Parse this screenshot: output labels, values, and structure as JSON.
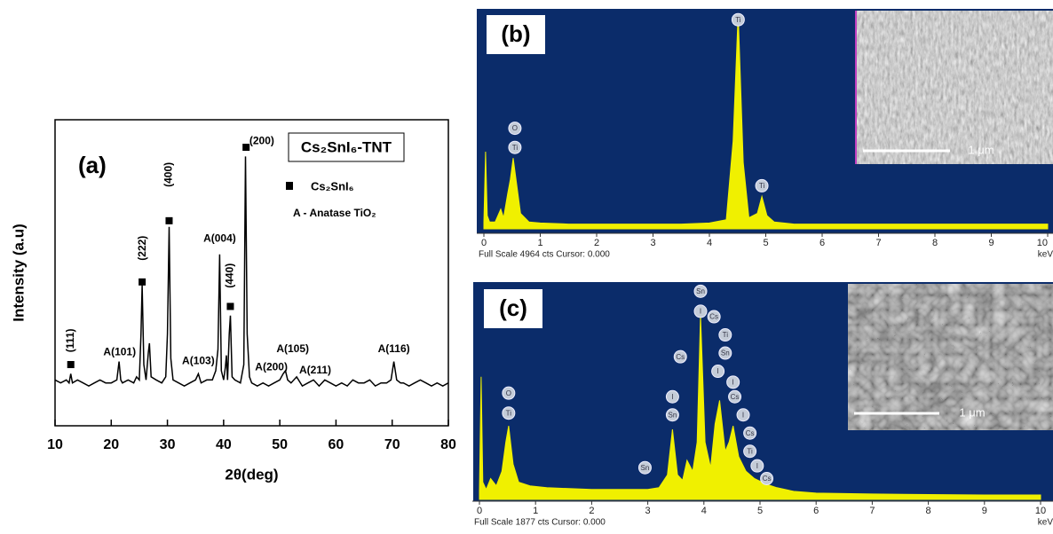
{
  "chart_data": [
    {
      "type": "line",
      "panel_label": "(a)",
      "title": "Cs₂SnI₆-TNT",
      "xlabel": "2θ(deg)",
      "ylabel": "Intensity (a.u)",
      "xlim": [
        10,
        80
      ],
      "ylim": [
        0,
        100
      ],
      "xticks": [
        10,
        20,
        30,
        40,
        50,
        60,
        70,
        80
      ],
      "color": "#000000",
      "x": [
        10,
        11,
        12,
        12.5,
        12.8,
        13.1,
        14,
        15,
        16,
        17,
        18,
        19,
        20,
        21,
        21.4,
        21.7,
        22,
        23,
        24,
        24.5,
        25,
        25.3,
        25.5,
        25.8,
        26.2,
        26.6,
        26.8,
        27.1,
        28,
        29,
        29.7,
        30.0,
        30.3,
        30.6,
        31,
        32,
        33,
        34,
        35,
        35.5,
        36,
        37,
        38,
        38.6,
        39.0,
        39.3,
        39.6,
        40,
        40.3,
        40.5,
        40.7,
        41.0,
        41.2,
        41.5,
        42,
        43,
        43.6,
        43.9,
        44.2,
        44.6,
        45,
        46,
        47,
        48,
        49,
        50,
        50.6,
        51,
        51.4,
        52,
        53,
        54,
        55,
        56,
        57,
        58,
        59,
        60,
        61,
        62,
        63,
        64,
        65,
        66,
        67,
        68,
        69,
        69.8,
        70.3,
        70.8,
        71.5,
        72,
        73,
        74,
        75,
        76,
        77,
        78,
        79,
        80
      ],
      "y": [
        15,
        14,
        15,
        14,
        17,
        14,
        15,
        14,
        13,
        14,
        15,
        14,
        14,
        15,
        21,
        15,
        14,
        15,
        14,
        16,
        15,
        30,
        46,
        20,
        15,
        24,
        27,
        16,
        15,
        14,
        16,
        30,
        65,
        22,
        15,
        14,
        13,
        14,
        15,
        17,
        14,
        15,
        15,
        18,
        25,
        56,
        18,
        15,
        19,
        23,
        15,
        30,
        36,
        16,
        15,
        14,
        20,
        88,
        30,
        16,
        14,
        13,
        14,
        13,
        14,
        15,
        17,
        18,
        15,
        14,
        16,
        13,
        14,
        15,
        13,
        15,
        14,
        13,
        14,
        13,
        15,
        14,
        14,
        15,
        13,
        14,
        14,
        15,
        21,
        15,
        14,
        14,
        13,
        14,
        15,
        14,
        13,
        14,
        13,
        14
      ],
      "markers": {
        "name": "Cs₂SnI₆",
        "x": [
          12.8,
          25.5,
          30.3,
          41.2,
          44.0
        ],
        "y": [
          20,
          47,
          67,
          39,
          91
        ]
      },
      "legend_note": "A - Anatase TiO₂",
      "annotations": [
        {
          "label": "(111)",
          "x": 12.8,
          "y": 24
        },
        {
          "label": "A(101)",
          "x": 21.5,
          "y": 24
        },
        {
          "label": "(222)",
          "x": 25.6,
          "y": 54
        },
        {
          "label": "(400)",
          "x": 30.3,
          "y": 78
        },
        {
          "label": "A(004)",
          "x": 39.3,
          "y": 61
        },
        {
          "label": "(440)",
          "x": 41.2,
          "y": 45
        },
        {
          "label": "(200)",
          "x": 46.8,
          "y": 93
        },
        {
          "label": "A(103)",
          "x": 35.5,
          "y": 21
        },
        {
          "label": "A(200)",
          "x": 48.5,
          "y": 19
        },
        {
          "label": "A(105)",
          "x": 52.3,
          "y": 25
        },
        {
          "label": "A(211)",
          "x": 56.3,
          "y": 18
        },
        {
          "label": "A(116)",
          "x": 70.3,
          "y": 25
        }
      ]
    },
    {
      "type": "area",
      "panel_label": "(b)",
      "xlabel": "keV",
      "footer": "Full Scale 4964 cts Cursor: 0.000",
      "xlim": [
        0,
        10
      ],
      "ylim": [
        0,
        100
      ],
      "xticks": [
        0,
        1,
        2,
        3,
        4,
        5,
        6,
        7,
        8,
        9,
        10
      ],
      "color": "#f0f000",
      "x": [
        0,
        0.03,
        0.06,
        0.1,
        0.2,
        0.3,
        0.35,
        0.42,
        0.47,
        0.52,
        0.58,
        0.65,
        0.8,
        1,
        1.5,
        2,
        2.5,
        3,
        3.5,
        4,
        4.3,
        4.42,
        4.51,
        4.6,
        4.7,
        4.85,
        4.93,
        5.02,
        5.15,
        5.5,
        6,
        7,
        8,
        9,
        10
      ],
      "y": [
        2,
        35,
        5,
        2,
        2,
        8,
        4,
        15,
        22,
        32,
        20,
        6,
        2,
        1.5,
        1,
        1,
        1,
        1,
        1,
        1.5,
        3,
        40,
        100,
        30,
        4,
        6,
        14,
        5,
        2,
        1,
        1,
        1,
        1,
        1,
        1
      ],
      "elements": [
        {
          "label": "O",
          "x": 0.55,
          "y": 46
        },
        {
          "label": "Ti",
          "x": 0.55,
          "y": 37
        },
        {
          "label": "Ti",
          "x": 4.51,
          "y": 97
        },
        {
          "label": "Ti",
          "x": 4.93,
          "y": 19
        }
      ],
      "inset": {
        "scale_label": "1 μm"
      }
    },
    {
      "type": "area",
      "panel_label": "(c)",
      "xlabel": "keV",
      "footer": "Full Scale 1877 cts Cursor: 0.000",
      "xlim": [
        0,
        10
      ],
      "ylim": [
        0,
        100
      ],
      "xticks": [
        0,
        1,
        2,
        3,
        4,
        5,
        6,
        7,
        8,
        9,
        10
      ],
      "color": "#f0f000",
      "x": [
        0,
        0.03,
        0.06,
        0.12,
        0.2,
        0.3,
        0.4,
        0.47,
        0.52,
        0.6,
        0.7,
        0.9,
        1.2,
        1.6,
        2,
        2.5,
        3,
        3.2,
        3.35,
        3.44,
        3.53,
        3.62,
        3.7,
        3.8,
        3.88,
        3.94,
        4.02,
        4.12,
        4.2,
        4.28,
        4.38,
        4.45,
        4.52,
        4.62,
        4.75,
        4.9,
        5.1,
        5.3,
        5.6,
        6,
        7,
        8,
        9,
        10
      ],
      "y": [
        3,
        66,
        8,
        4,
        10,
        6,
        14,
        30,
        39,
        18,
        8,
        6,
        5,
        4.5,
        4,
        4,
        4,
        5,
        12,
        37,
        12,
        9,
        20,
        14,
        30,
        100,
        30,
        16,
        40,
        53,
        25,
        30,
        39,
        22,
        14,
        10,
        7,
        5,
        3,
        2,
        1.5,
        1.2,
        1,
        1
      ],
      "elements": [
        {
          "label": "O",
          "x": 0.52,
          "y": 57
        },
        {
          "label": "Ti",
          "x": 0.52,
          "y": 46
        },
        {
          "label": "Sn",
          "x": 2.95,
          "y": 16
        },
        {
          "label": "I",
          "x": 3.44,
          "y": 55
        },
        {
          "label": "Sn",
          "x": 3.44,
          "y": 45
        },
        {
          "label": "Cs",
          "x": 3.58,
          "y": 77
        },
        {
          "label": "Sn",
          "x": 3.94,
          "y": 113
        },
        {
          "label": "I",
          "x": 3.94,
          "y": 102
        },
        {
          "label": "Cs",
          "x": 4.18,
          "y": 99
        },
        {
          "label": "Ti",
          "x": 4.38,
          "y": 89
        },
        {
          "label": "Sn",
          "x": 4.38,
          "y": 79
        },
        {
          "label": "I",
          "x": 4.25,
          "y": 69
        },
        {
          "label": "I",
          "x": 4.52,
          "y": 63
        },
        {
          "label": "Cs",
          "x": 4.55,
          "y": 55
        },
        {
          "label": "I",
          "x": 4.7,
          "y": 45
        },
        {
          "label": "Cs",
          "x": 4.82,
          "y": 35
        },
        {
          "label": "Ti",
          "x": 4.82,
          "y": 25
        },
        {
          "label": "I",
          "x": 4.95,
          "y": 17
        },
        {
          "label": "Cs",
          "x": 5.12,
          "y": 10
        }
      ],
      "inset": {
        "scale_label": "1 μm"
      }
    }
  ]
}
